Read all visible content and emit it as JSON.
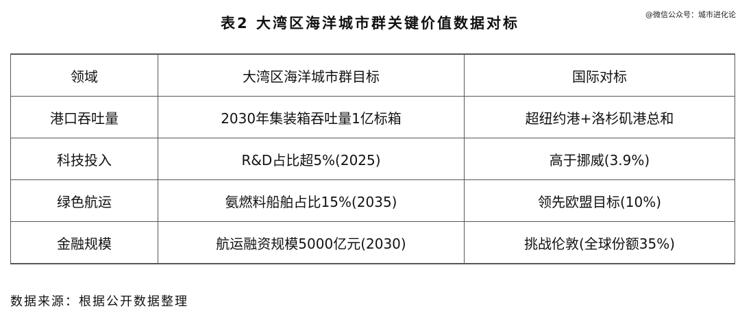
{
  "title": "表2 大湾区海洋城市群关键价值数据对标",
  "watermark": "@微信公众号：城市进化论",
  "table": {
    "headers": [
      "领域",
      "大湾区海洋城市群目标",
      "国际对标"
    ],
    "rows": [
      [
        "港口吞吐量",
        "2030年集装箱吞吐量1亿标箱",
        "超纽约港+洛杉矶港总和"
      ],
      [
        "科技投入",
        "R&D占比超5%(2025)",
        "高于挪威(3.9%)"
      ],
      [
        "绿色航运",
        "氨燃料船舶占比15%(2035)",
        "领先欧盟目标(10%)"
      ],
      [
        "金融规模",
        "航运融资规模5000亿元(2030)",
        "挑战伦敦(全球份额35%)"
      ]
    ]
  },
  "source": "数据来源：根据公开数据整理"
}
